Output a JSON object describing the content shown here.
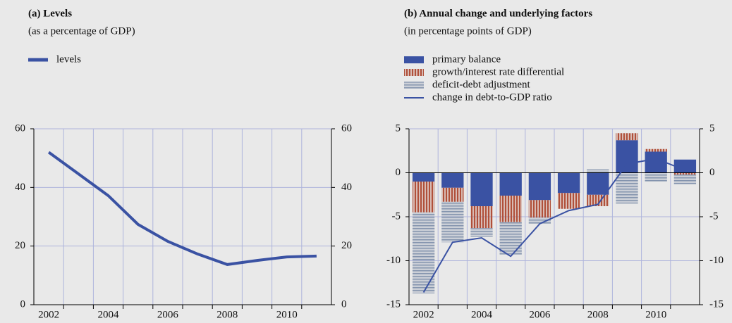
{
  "chart_data": [
    {
      "type": "line",
      "title": "(a) Levels",
      "subtitle": "(as a percentage of GDP)",
      "categories": [
        "2002",
        null,
        "2004",
        null,
        "2006",
        null,
        "2008",
        null,
        "2010",
        null
      ],
      "series": [
        {
          "name": "levels",
          "color": "#3a52a3",
          "values": [
            52,
            44.6,
            37.2,
            27.4,
            21.6,
            17.3,
            13.7,
            15.1,
            16.3,
            16.6
          ]
        }
      ],
      "ylim": [
        0,
        60
      ],
      "yticks": [
        0,
        20,
        40,
        60
      ],
      "grid": true
    },
    {
      "type": "bar",
      "title": "(b) Annual change and underlying factors",
      "subtitle": "(in percentage points of GDP)",
      "categories": [
        "2002",
        null,
        "2004",
        null,
        "2006",
        null,
        "2008",
        null,
        "2010",
        null
      ],
      "series": [
        {
          "name": "primary balance",
          "kind": "bar",
          "color": "#3a52a3",
          "values": [
            -1.0,
            -1.7,
            -3.8,
            -2.6,
            -3.1,
            -2.3,
            -2.5,
            3.7,
            2.4,
            1.5
          ]
        },
        {
          "name": "growth/interest rate differential",
          "kind": "bar",
          "color": "#b0503a",
          "pattern": "vertical",
          "values": [
            -3.5,
            -1.6,
            -2.5,
            -3.0,
            -2.0,
            -1.8,
            -1.3,
            0.8,
            0.3,
            -0.2
          ]
        },
        {
          "name": "deficit-debt adjustment",
          "kind": "bar",
          "color": "#8494ae",
          "pattern": "horizontal",
          "values": [
            -9.2,
            -4.6,
            -1.0,
            -3.7,
            -0.7,
            0,
            0.4,
            -3.5,
            -1.0,
            -1.1
          ]
        },
        {
          "name": "change in debt-to-GDP ratio",
          "kind": "line",
          "color": "#3a52a3",
          "values": [
            -13.6,
            -7.9,
            -7.4,
            -9.5,
            -5.8,
            -4.3,
            -3.6,
            1.0,
            1.6,
            0.3
          ]
        }
      ],
      "ylim": [
        -15,
        5
      ],
      "yticks": [
        -15,
        -10,
        -5,
        0,
        5
      ],
      "grid": true
    }
  ]
}
